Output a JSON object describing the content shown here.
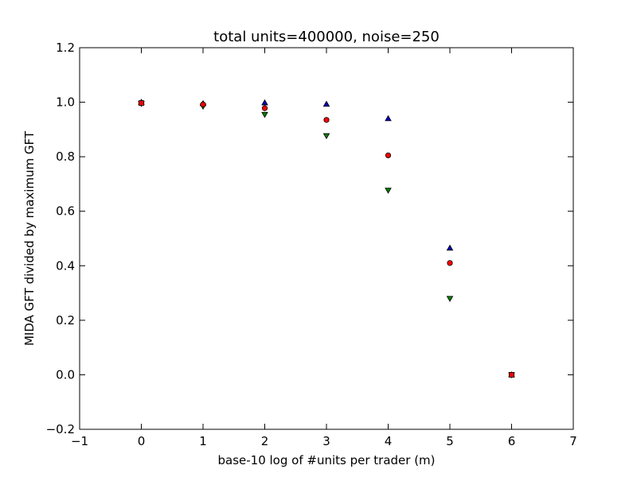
{
  "chart_data": {
    "type": "scatter",
    "title": "total units=400000, noise=250",
    "xlabel": "base-10 log of #units per trader (m)",
    "ylabel": "MIDA GFT divided by maximum GFT",
    "xlim": [
      -1,
      7
    ],
    "ylim": [
      -0.2,
      1.2
    ],
    "x_ticks": [
      -1,
      0,
      1,
      2,
      3,
      4,
      5,
      6,
      7
    ],
    "y_ticks": [
      -0.2,
      0.0,
      0.2,
      0.4,
      0.6,
      0.8,
      1.0,
      1.2
    ],
    "x_tick_labels": [
      "−1",
      "0",
      "1",
      "2",
      "3",
      "4",
      "5",
      "6",
      "7"
    ],
    "y_tick_labels": [
      "−0.2",
      "0.0",
      "0.2",
      "0.4",
      "0.6",
      "0.8",
      "1.0",
      "1.2"
    ],
    "grid": false,
    "legend": "none",
    "series": [
      {
        "marker": "triangle-up",
        "color": "#0000bf",
        "points": [
          {
            "x": 0,
            "y": 1.0
          },
          {
            "x": 1,
            "y": 0.995
          },
          {
            "x": 2,
            "y": 0.998
          },
          {
            "x": 3,
            "y": 0.993
          },
          {
            "x": 4,
            "y": 0.94
          },
          {
            "x": 5,
            "y": 0.465
          },
          {
            "x": 6,
            "y": 0.0
          }
        ]
      },
      {
        "marker": "triangle-down",
        "color": "#007f00",
        "points": [
          {
            "x": 0,
            "y": 0.995
          },
          {
            "x": 1,
            "y": 0.985
          },
          {
            "x": 2,
            "y": 0.955
          },
          {
            "x": 3,
            "y": 0.877
          },
          {
            "x": 4,
            "y": 0.677
          },
          {
            "x": 5,
            "y": 0.28
          },
          {
            "x": 6,
            "y": 0.0
          }
        ]
      },
      {
        "marker": "circle",
        "color": "#ff0000",
        "points": [
          {
            "x": 0,
            "y": 0.997
          },
          {
            "x": 1,
            "y": 0.992
          },
          {
            "x": 2,
            "y": 0.978
          },
          {
            "x": 3,
            "y": 0.935
          },
          {
            "x": 4,
            "y": 0.805
          },
          {
            "x": 5,
            "y": 0.41
          },
          {
            "x": 6,
            "y": 0.0
          }
        ]
      },
      {
        "marker": "square",
        "color": "#ff0000",
        "points": [
          {
            "x": 0,
            "y": 0.997
          },
          {
            "x": 6,
            "y": 0.0
          }
        ]
      }
    ]
  }
}
